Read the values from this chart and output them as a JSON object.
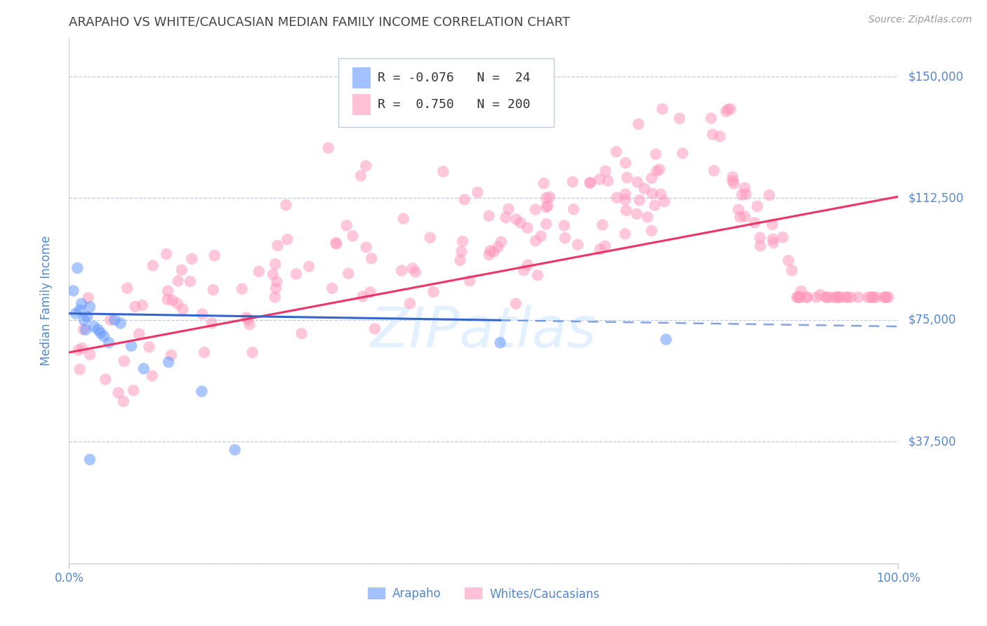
{
  "title": "ARAPAHO VS WHITE/CAUCASIAN MEDIAN FAMILY INCOME CORRELATION CHART",
  "source": "Source: ZipAtlas.com",
  "ylabel": "Median Family Income",
  "yticks": [
    0,
    37500,
    75000,
    112500,
    150000
  ],
  "ytick_labels": [
    "",
    "$37,500",
    "$75,000",
    "$112,500",
    "$150,000"
  ],
  "ylim": [
    0,
    162000
  ],
  "xlim": [
    0,
    1.0
  ],
  "xtick_labels": [
    "0.0%",
    "100.0%"
  ],
  "legend_r_arapaho": "-0.076",
  "legend_n_arapaho": "24",
  "legend_r_white": "0.750",
  "legend_n_white": "200",
  "arapaho_color": "#6699ff",
  "white_color": "#ff99bb",
  "trend_arapaho_color": "#3366cc",
  "trend_white_color": "#ee3366",
  "watermark": "ZIPatlas",
  "watermark_color": "#ddeeff",
  "background_color": "#ffffff",
  "grid_color": "#aabbcc",
  "title_color": "#444444",
  "axis_label_color": "#5588cc",
  "source_color": "#999999",
  "legend_text_color": "#333333"
}
